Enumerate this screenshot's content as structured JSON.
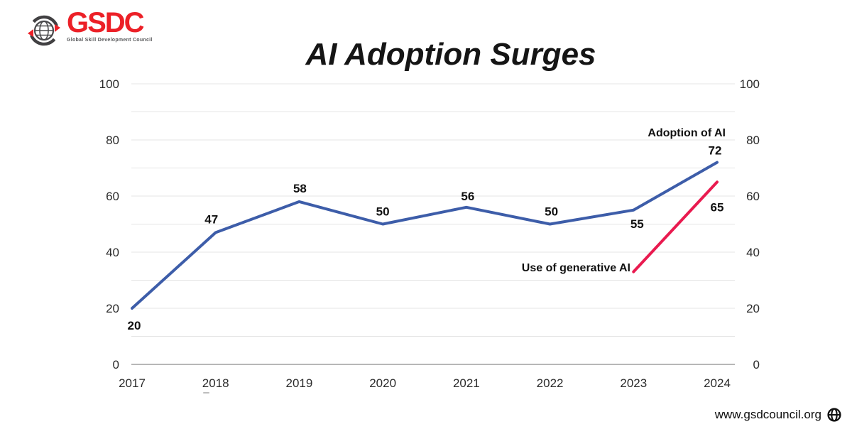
{
  "logo": {
    "name": "GSDC",
    "tagline": "Global Skill Development Council",
    "brand_color": "#ec2027",
    "tagline_color": "#58595b"
  },
  "title": "AI Adoption Surges",
  "footer": {
    "url": "www.gsdcouncil.org"
  },
  "chart_data": {
    "type": "line",
    "title": "AI Adoption Surges",
    "categories": [
      "2017",
      "2018",
      "2019",
      "2020",
      "2021",
      "2022",
      "2023",
      "2024"
    ],
    "series": [
      {
        "name": "Adoption of AI",
        "color": "#3d5da9",
        "values": [
          20,
          47,
          58,
          50,
          56,
          50,
          55,
          72
        ],
        "data_labels": [
          "20",
          "47",
          "58",
          "50",
          "56",
          "50",
          "55",
          "72"
        ]
      },
      {
        "name": "Use of generative AI",
        "color": "#e91a4f",
        "values": [
          null,
          null,
          null,
          null,
          null,
          null,
          33,
          65
        ],
        "data_labels": [
          null,
          null,
          null,
          null,
          null,
          null,
          null,
          "65"
        ]
      }
    ],
    "xlabel": "",
    "ylabel": "",
    "ylim": [
      0,
      100
    ],
    "y_ticks": [
      0,
      20,
      40,
      60,
      80,
      100
    ],
    "y_minor_step": 10,
    "dual_axis": true,
    "grid": true,
    "legend_position": "inline-annotations",
    "grid_color": "#e4e4e4",
    "zero_line_color": "#9f9f9f"
  }
}
